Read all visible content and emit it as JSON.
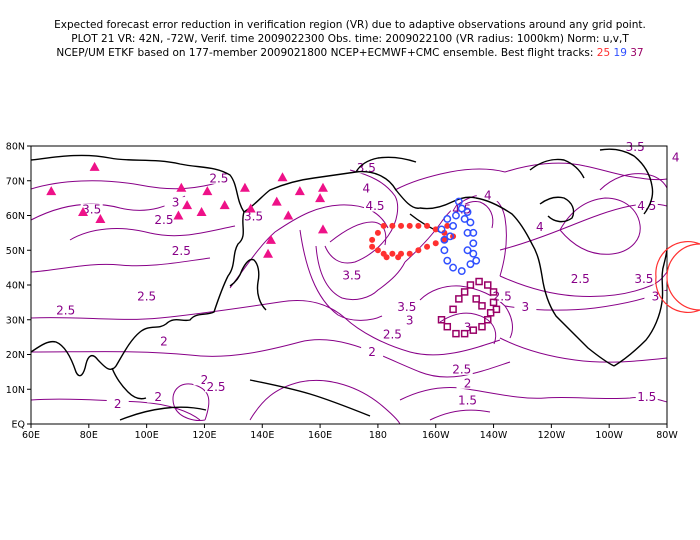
{
  "header": {
    "line1": "Expected forecast error reduction in verification region (VR) due to adaptive observations around any grid point.",
    "line2": "PLOT 21 VR: 42N, -72W, Verif. time 2009022300 Obs. time: 2009022100 (VR radius: 1000km) Norm: u,v,T",
    "line3_prefix": "NCEP/UM ETKF based on 177-member 2009021800 NCEP+ECMWF+CMC ensemble. Best flight tracks:",
    "track_a": "25",
    "track_b": "19",
    "track_c": "37"
  },
  "axes": {
    "lon_labels": [
      "60E",
      "80E",
      "100E",
      "120E",
      "140E",
      "160E",
      "180",
      "160W",
      "140W",
      "120W",
      "100W",
      "80W"
    ],
    "lat_labels": [
      "EQ",
      "10N",
      "20N",
      "30N",
      "40N",
      "50N",
      "60N",
      "70N",
      "80N"
    ]
  },
  "contour_labels": [
    {
      "text": "3.5",
      "lon": 137,
      "lat": 59
    },
    {
      "text": "2.5",
      "lon": 125,
      "lat": 70
    },
    {
      "text": "3.5",
      "lon": 81,
      "lat": 61
    },
    {
      "text": "3",
      "lon": 110,
      "lat": 63
    },
    {
      "text": "2.5",
      "lon": 106,
      "lat": 58
    },
    {
      "text": "2.5",
      "lon": 100,
      "lat": 36
    },
    {
      "text": "2.5",
      "lon": 112,
      "lat": 49
    },
    {
      "text": "2.5",
      "lon": 72,
      "lat": 32
    },
    {
      "text": "2",
      "lon": 106,
      "lat": 23
    },
    {
      "text": "2",
      "lon": 120,
      "lat": 12
    },
    {
      "text": "2.5",
      "lon": 124,
      "lat": 10
    },
    {
      "text": "2",
      "lon": 104,
      "lat": 7
    },
    {
      "text": "2",
      "lon": 90,
      "lat": 5
    },
    {
      "text": "3.5",
      "lon": 176,
      "lat": 73
    },
    {
      "text": "4",
      "lon": 176,
      "lat": 67
    },
    {
      "text": "4.5",
      "lon": 179,
      "lat": 62
    },
    {
      "text": "3.5",
      "lon": 171,
      "lat": 42
    },
    {
      "text": "3.5",
      "lon": 190,
      "lat": 33
    },
    {
      "text": "3",
      "lon": 191,
      "lat": 29
    },
    {
      "text": "2.5",
      "lon": 185,
      "lat": 25
    },
    {
      "text": "2",
      "lon": 178,
      "lat": 20
    },
    {
      "text": "4.5",
      "lon": 209,
      "lat": 61
    },
    {
      "text": "4",
      "lon": 218,
      "lat": 65
    },
    {
      "text": "3",
      "lon": 231,
      "lat": 33
    },
    {
      "text": "3",
      "lon": 211,
      "lat": 27
    },
    {
      "text": "2.5",
      "lon": 223,
      "lat": 36
    },
    {
      "text": "2.5",
      "lon": 209,
      "lat": 15
    },
    {
      "text": "2",
      "lon": 211,
      "lat": 11
    },
    {
      "text": "1.5",
      "lon": 211,
      "lat": 6
    },
    {
      "text": "4",
      "lon": 236,
      "lat": 56
    },
    {
      "text": "2.5",
      "lon": 250,
      "lat": 41
    },
    {
      "text": "3.5",
      "lon": 272,
      "lat": 41
    },
    {
      "text": "3",
      "lon": 276,
      "lat": 36
    },
    {
      "text": "4.5",
      "lon": 273,
      "lat": 62
    },
    {
      "text": "3.5",
      "lon": 269,
      "lat": 79
    },
    {
      "text": "4",
      "lon": 283,
      "lat": 76
    },
    {
      "text": "1.5",
      "lon": 273,
      "lat": 7
    }
  ],
  "colors": {
    "contour": "#880088",
    "coast": "#000000",
    "triangle": "#ee1188",
    "track_25": "#ff3030",
    "track_19": "#3050ff",
    "track_37": "#990066",
    "vr_circle": "#ff3030"
  }
}
